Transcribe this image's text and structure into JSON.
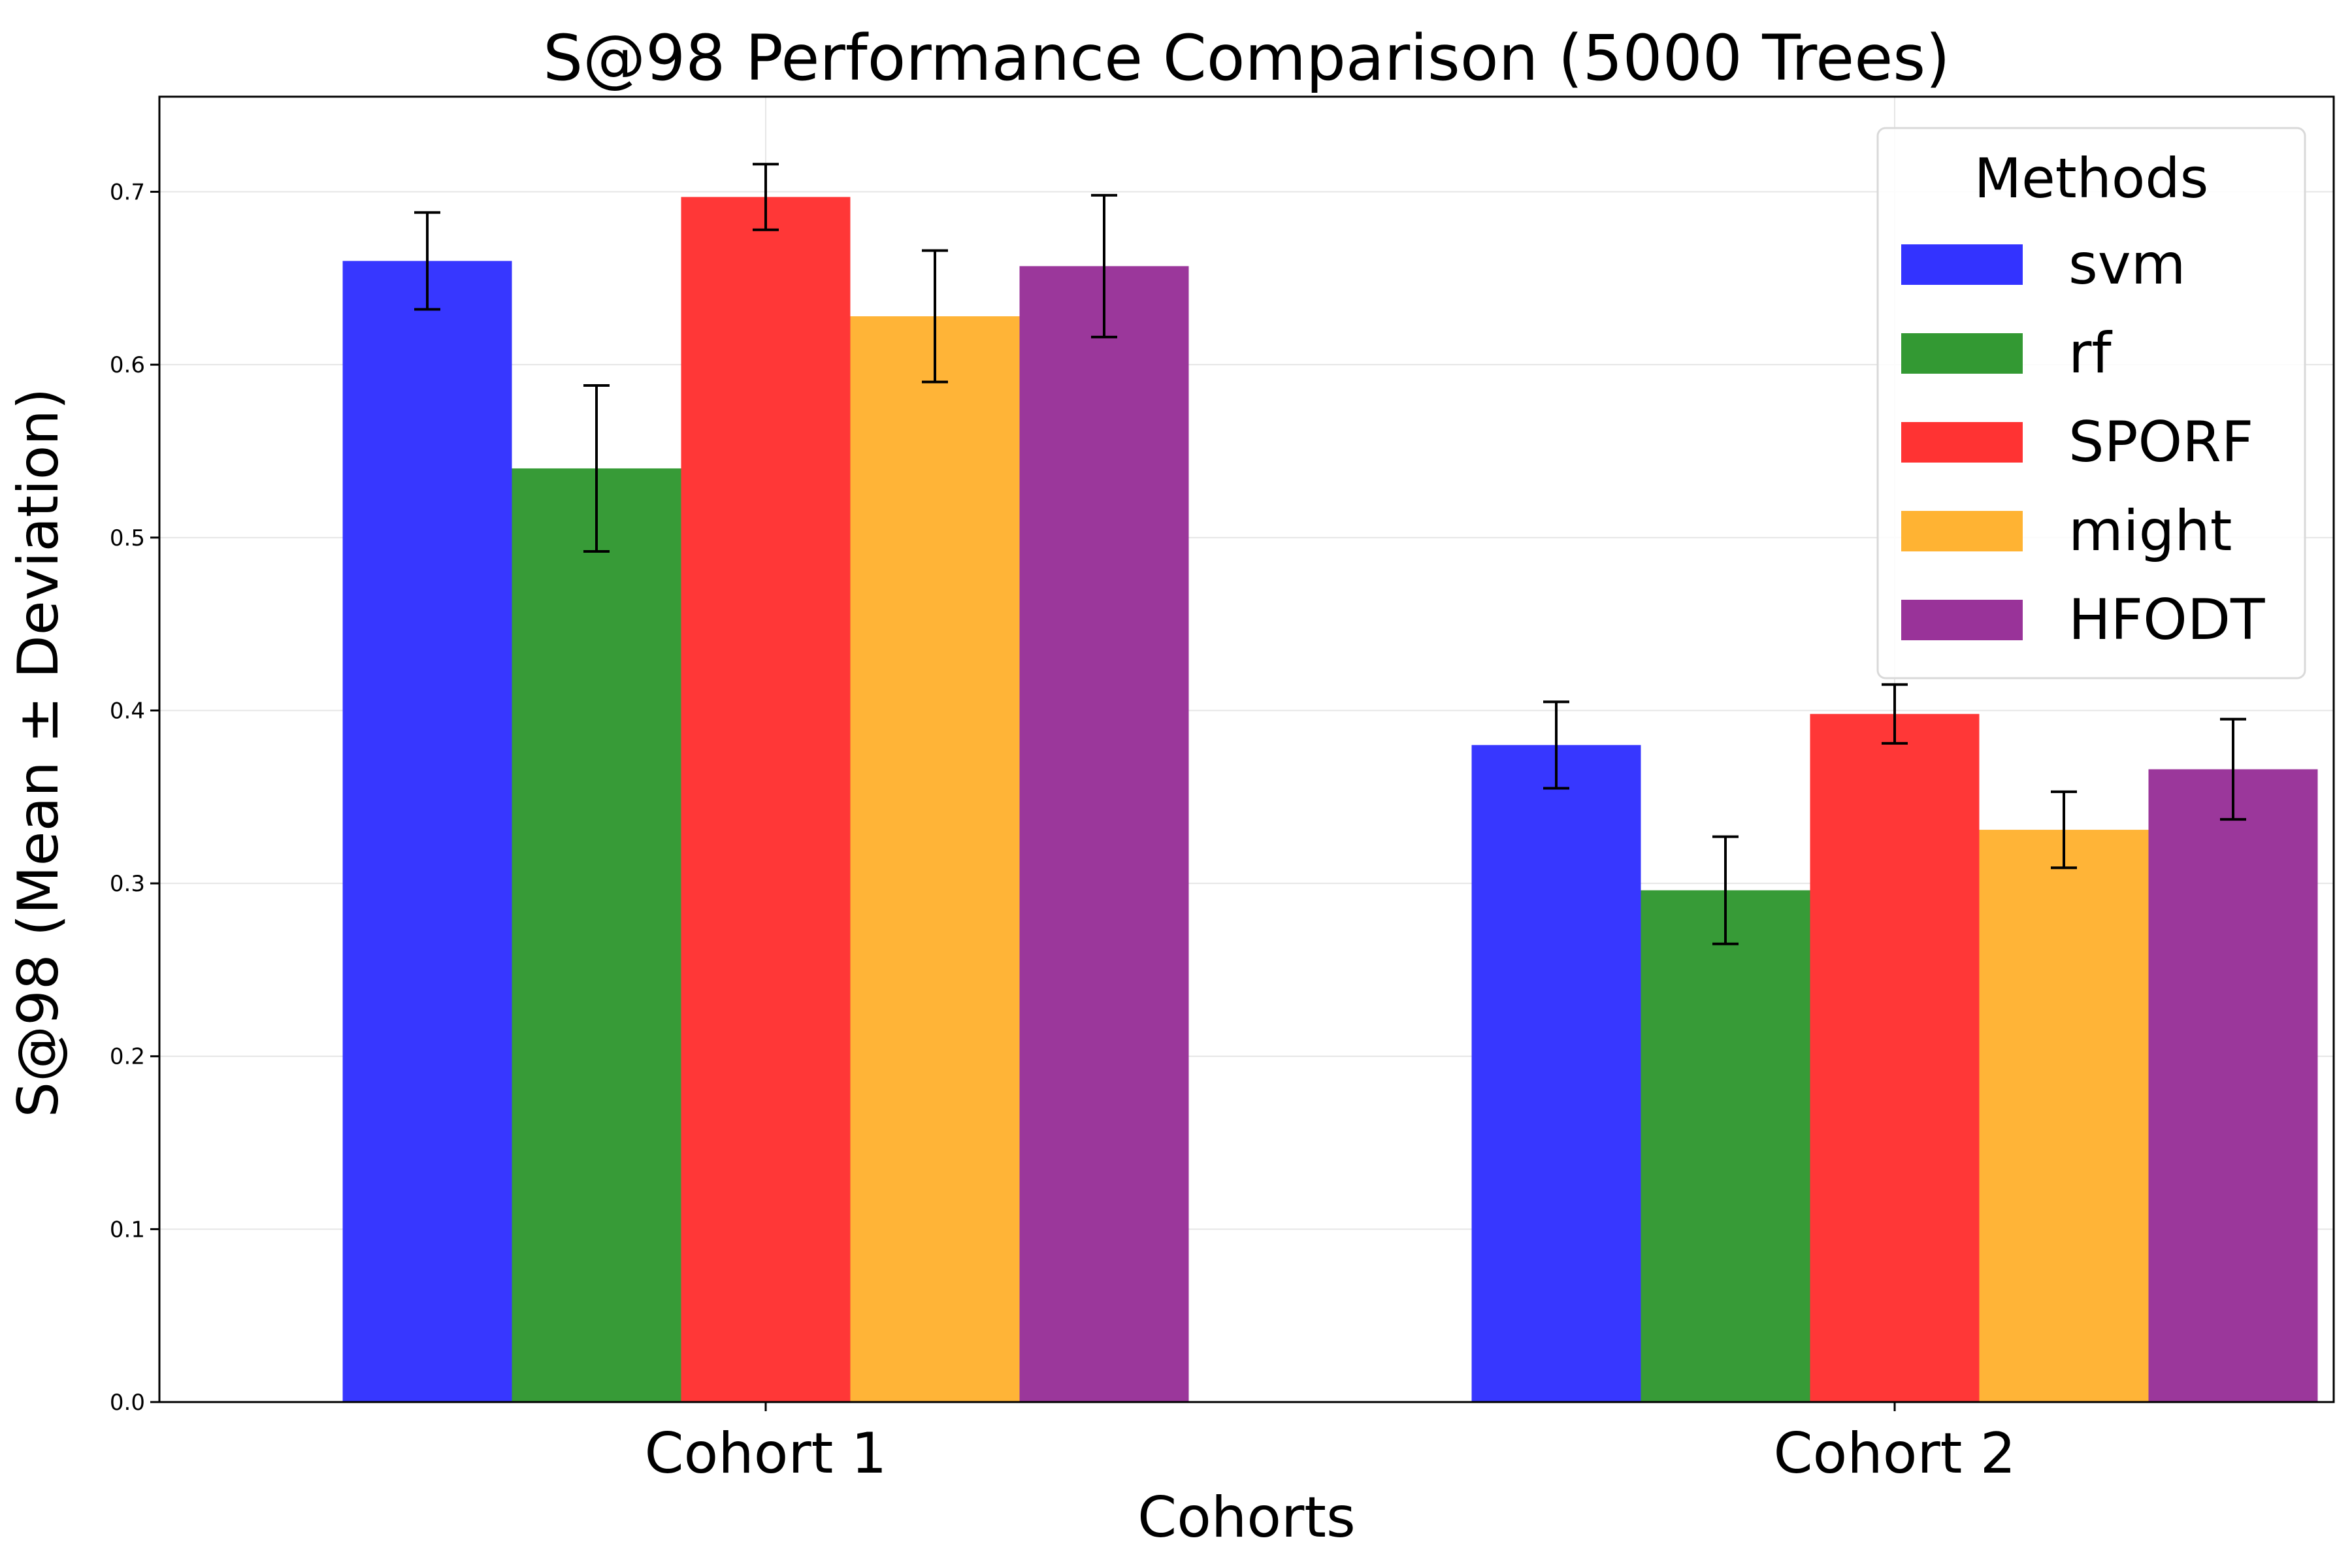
{
  "chart_data": {
    "type": "bar",
    "title": "S@98 Performance Comparison (5000 Trees)",
    "xlabel": "Cohorts",
    "ylabel": "S@98 (Mean ± Deviation)",
    "categories": [
      "Cohort 1",
      "Cohort 2"
    ],
    "ylim": [
      0,
      0.755
    ],
    "yticks": [
      0.0,
      0.1,
      0.2,
      0.3,
      0.4,
      0.5,
      0.6,
      0.7
    ],
    "ytick_labels": [
      "0.0",
      "0.1",
      "0.2",
      "0.3",
      "0.4",
      "0.5",
      "0.6",
      "0.7"
    ],
    "grid": true,
    "legend": {
      "title": "Methods",
      "placement": "top-right"
    },
    "series": [
      {
        "name": "svm",
        "color": "#3333ff",
        "values": [
          0.66,
          0.38
        ],
        "errors": [
          0.028,
          0.025
        ]
      },
      {
        "name": "rf",
        "color": "#339933",
        "values": [
          0.54,
          0.296
        ],
        "errors": [
          0.048,
          0.031
        ]
      },
      {
        "name": "SPORF",
        "color": "#ff3333",
        "values": [
          0.697,
          0.398
        ],
        "errors": [
          0.019,
          0.017
        ]
      },
      {
        "name": "might",
        "color": "#ffb333",
        "values": [
          0.628,
          0.331
        ],
        "errors": [
          0.038,
          0.022
        ]
      },
      {
        "name": "HFODT",
        "color": "#993399",
        "values": [
          0.657,
          0.366
        ],
        "errors": [
          0.041,
          0.029
        ]
      }
    ]
  }
}
